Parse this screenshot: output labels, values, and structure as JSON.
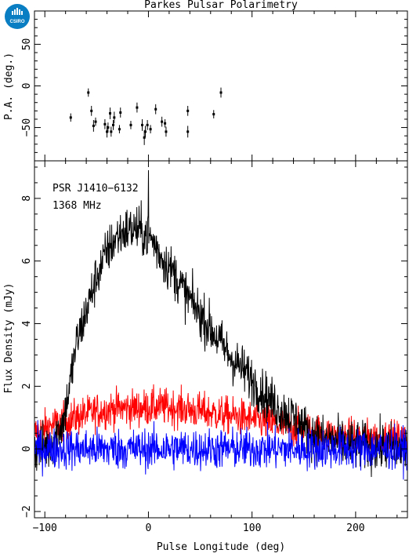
{
  "logo": {
    "text": "CSIRO",
    "color": "#0a7ec2"
  },
  "chart_data": [
    {
      "type": "scatter",
      "panel": "position-angle",
      "title": "Parkes Pulsar Polarimetry",
      "xlabel": "",
      "ylabel": "P.A. (deg.)",
      "xlim": [
        -110,
        250
      ],
      "ylim": [
        -90,
        90
      ],
      "yticks": [
        -50,
        0,
        50
      ],
      "points": [
        {
          "x": -75,
          "y": -38,
          "err": 5
        },
        {
          "x": -58,
          "y": -8,
          "err": 5
        },
        {
          "x": -55,
          "y": -30,
          "err": 6
        },
        {
          "x": -53,
          "y": -48,
          "err": 7
        },
        {
          "x": -51,
          "y": -43,
          "err": 5
        },
        {
          "x": -42,
          "y": -46,
          "err": 6
        },
        {
          "x": -40,
          "y": -55,
          "err": 7
        },
        {
          "x": -39,
          "y": -50,
          "err": 6
        },
        {
          "x": -37,
          "y": -33,
          "err": 7
        },
        {
          "x": -36,
          "y": -55,
          "err": 6
        },
        {
          "x": -34,
          "y": -47,
          "err": 6
        },
        {
          "x": -33,
          "y": -38,
          "err": 7
        },
        {
          "x": -28,
          "y": -52,
          "err": 5
        },
        {
          "x": -27,
          "y": -32,
          "err": 6
        },
        {
          "x": -17,
          "y": -47,
          "err": 5
        },
        {
          "x": -11,
          "y": -26,
          "err": 6
        },
        {
          "x": -6,
          "y": -47,
          "err": 7
        },
        {
          "x": -4,
          "y": -62,
          "err": 9
        },
        {
          "x": -3,
          "y": -55,
          "err": 7
        },
        {
          "x": -1,
          "y": -47,
          "err": 6
        },
        {
          "x": 2,
          "y": -52,
          "err": 5
        },
        {
          "x": 7,
          "y": -28,
          "err": 6
        },
        {
          "x": 13,
          "y": -43,
          "err": 6
        },
        {
          "x": 16,
          "y": -45,
          "err": 5
        },
        {
          "x": 17,
          "y": -55,
          "err": 6
        },
        {
          "x": 38,
          "y": -30,
          "err": 6
        },
        {
          "x": 38,
          "y": -55,
          "err": 7
        },
        {
          "x": 63,
          "y": -34,
          "err": 5
        },
        {
          "x": 70,
          "y": -8,
          "err": 6
        }
      ]
    },
    {
      "type": "line",
      "panel": "flux-profile",
      "annotations": [
        "PSR J1410−6132",
        "1368 MHz"
      ],
      "xlabel": "Pulse Longitude (deg)",
      "ylabel": "Flux Density (mJy)",
      "xlim": [
        -110,
        250
      ],
      "ylim": [
        -2.2,
        9.2
      ],
      "xticks": [
        -100,
        0,
        100,
        200
      ],
      "yticks": [
        -2,
        0,
        2,
        4,
        6,
        8
      ],
      "grid": false,
      "series": [
        {
          "color": "#000000",
          "envelope": [
            [
              -110,
              0
            ],
            [
              -95,
              0.1
            ],
            [
              -82,
              0.9
            ],
            [
              -75,
              2.2
            ],
            [
              -70,
              3.3
            ],
            [
              -60,
              4.4
            ],
            [
              -50,
              5.5
            ],
            [
              -40,
              6.3
            ],
            [
              -30,
              6.8
            ],
            [
              -20,
              7.0
            ],
            [
              -10,
              7.0
            ],
            [
              0,
              6.8
            ],
            [
              5,
              6.6
            ],
            [
              15,
              6.0
            ],
            [
              25,
              5.6
            ],
            [
              35,
              5.0
            ],
            [
              50,
              4.3
            ],
            [
              65,
              3.6
            ],
            [
              80,
              2.9
            ],
            [
              95,
              2.4
            ],
            [
              110,
              1.8
            ],
            [
              125,
              1.3
            ],
            [
              140,
              1.0
            ],
            [
              155,
              0.5
            ],
            [
              170,
              0.3
            ],
            [
              200,
              0.1
            ],
            [
              250,
              0.0
            ]
          ],
          "noise": 0.65,
          "peak": {
            "x": 0,
            "y": 8.9
          }
        },
        {
          "color": "#ff0000",
          "envelope": [
            [
              -110,
              0.5
            ],
            [
              -90,
              0.8
            ],
            [
              -70,
              1.0
            ],
            [
              -50,
              1.2
            ],
            [
              -30,
              1.3
            ],
            [
              -10,
              1.3
            ],
            [
              10,
              1.35
            ],
            [
              30,
              1.3
            ],
            [
              60,
              1.15
            ],
            [
              90,
              1.0
            ],
            [
              120,
              0.8
            ],
            [
              150,
              0.6
            ],
            [
              180,
              0.4
            ],
            [
              210,
              0.35
            ],
            [
              250,
              0.3
            ]
          ],
          "noise": 0.5,
          "floor": 0
        },
        {
          "color": "#0000ff",
          "envelope": [
            [
              -110,
              0
            ],
            [
              250,
              0
            ]
          ],
          "noise": 0.55
        }
      ]
    }
  ]
}
